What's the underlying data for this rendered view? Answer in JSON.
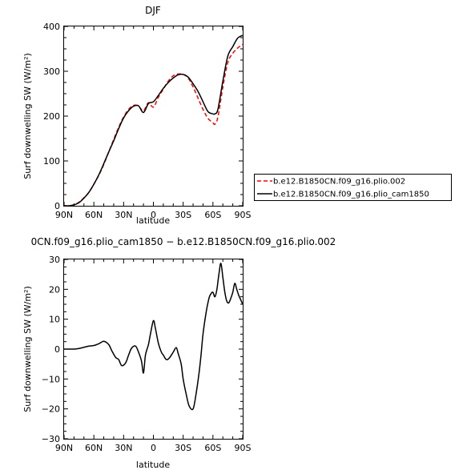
{
  "chart_data": [
    {
      "type": "line",
      "title": "DJF",
      "xlabel": "latitude",
      "ylabel": "Surf downwelling SW (W/m²)",
      "ylim": [
        0,
        400
      ],
      "yticks": [
        0,
        100,
        200,
        300,
        400
      ],
      "xticks": [
        "90N",
        "60N",
        "30N",
        "0",
        "30S",
        "60S",
        "90S"
      ],
      "xlim": [
        90,
        -90
      ],
      "legend_position": "right",
      "series": [
        {
          "name": "b.e12.B1850CN.f09_g16.plio.002",
          "color": "#ff0000",
          "dash": "dashed",
          "x": [
            90,
            85,
            80,
            75,
            70,
            65,
            60,
            55,
            50,
            45,
            40,
            35,
            30,
            25,
            20,
            15,
            10,
            5,
            0,
            -5,
            -10,
            -15,
            -20,
            -25,
            -30,
            -35,
            -40,
            -45,
            -50,
            -55,
            -60,
            -62,
            -65,
            -70,
            -75,
            -80,
            -85,
            -90
          ],
          "values": [
            0,
            0,
            2,
            8,
            18,
            30,
            48,
            68,
            92,
            120,
            148,
            175,
            198,
            215,
            224,
            222,
            212,
            230,
            220,
            242,
            260,
            278,
            290,
            294,
            293,
            285,
            265,
            240,
            215,
            195,
            185,
            182,
            198,
            265,
            320,
            340,
            352,
            360
          ]
        },
        {
          "name": "b.e12.B1850CN.f09_g16.plio_cam1850",
          "color": "#000000",
          "dash": "solid",
          "x": [
            90,
            85,
            80,
            75,
            70,
            65,
            60,
            55,
            50,
            45,
            40,
            35,
            30,
            25,
            20,
            15,
            10,
            5,
            0,
            -5,
            -10,
            -15,
            -20,
            -25,
            -30,
            -35,
            -40,
            -45,
            -50,
            -55,
            -60,
            -62,
            -65,
            -70,
            -75,
            -80,
            -85,
            -90
          ],
          "values": [
            0,
            0,
            2,
            7,
            17,
            30,
            48,
            69,
            94,
            120,
            145,
            172,
            196,
            212,
            222,
            223,
            208,
            228,
            232,
            246,
            262,
            275,
            285,
            292,
            293,
            287,
            272,
            255,
            232,
            210,
            205,
            205,
            215,
            278,
            334,
            355,
            374,
            380
          ]
        }
      ]
    },
    {
      "type": "line",
      "title": "0CN.f09_g16.plio_cam1850 − b.e12.B1850CN.f09_g16.plio.002",
      "xlabel": "latitude",
      "ylabel": "Surf downwelling SW (W/m²)",
      "ylim": [
        -30,
        30
      ],
      "yticks": [
        -30,
        -20,
        -10,
        0,
        10,
        20,
        30
      ],
      "xticks": [
        "90N",
        "60N",
        "30N",
        "0",
        "30S",
        "60S",
        "90S"
      ],
      "xlim": [
        90,
        -90
      ],
      "series": [
        {
          "color": "#000000",
          "dash": "solid",
          "x": [
            90,
            85,
            80,
            75,
            70,
            65,
            60,
            55,
            50,
            45,
            42,
            38,
            35,
            32,
            28,
            25,
            22,
            18,
            15,
            12,
            10,
            8,
            5,
            3,
            0,
            -2,
            -5,
            -8,
            -10,
            -13,
            -16,
            -20,
            -23,
            -25,
            -28,
            -30,
            -33,
            -36,
            -40,
            -43,
            -46,
            -48,
            -50,
            -53,
            -56,
            -58,
            -60,
            -62,
            -64,
            -66,
            -68,
            -70,
            -72,
            -74,
            -76,
            -78,
            -80,
            -82,
            -84,
            -86,
            -88,
            -90
          ],
          "values": [
            0,
            0,
            0,
            0.2,
            0.6,
            1,
            1.2,
            1.8,
            2.6,
            1.5,
            -0.5,
            -2.8,
            -3.5,
            -5.5,
            -4.6,
            -2,
            0.3,
            1,
            -1,
            -4,
            -8,
            -2,
            1.5,
            5,
            9.5,
            7,
            2,
            -1,
            -2,
            -3.5,
            -3,
            -1,
            0.5,
            -1.5,
            -5,
            -10,
            -15,
            -19,
            -20,
            -15,
            -8,
            -2,
            5,
            12,
            17,
            18.5,
            19,
            17.5,
            20,
            25,
            28.7,
            24,
            19,
            16,
            15.5,
            17,
            19,
            22,
            20,
            18,
            16.5,
            15
          ]
        }
      ]
    }
  ]
}
